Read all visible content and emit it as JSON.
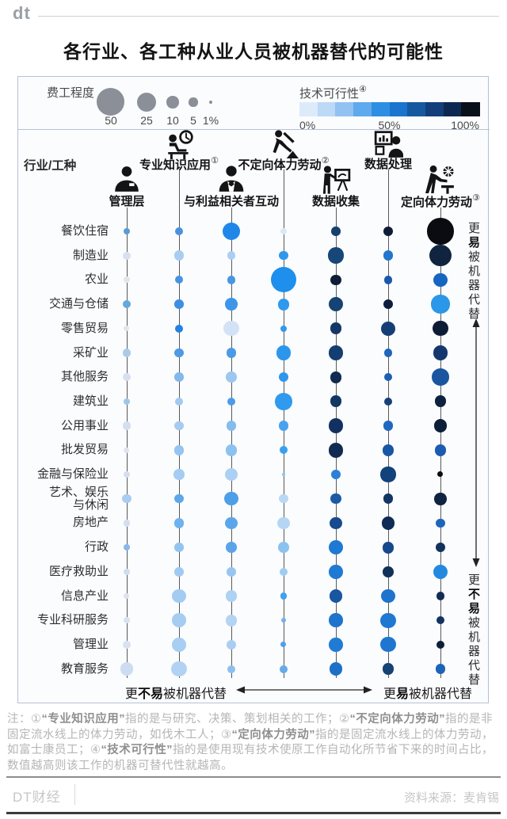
{
  "header": {
    "logo": "dt"
  },
  "chart_data": {
    "type": "bubble-matrix",
    "title": "各行业、各工种从业人员被机器替代的可能性",
    "corner_label": "行业/工种",
    "cell_format": [
      "size_pct_of_time",
      "feasibility_color"
    ],
    "size_legend": {
      "label": "费工程度",
      "items": [
        {
          "label": "50",
          "value": 50
        },
        {
          "label": "25",
          "value": 25
        },
        {
          "label": "10",
          "value": 10
        },
        {
          "label": "5",
          "value": 5
        },
        {
          "label": "1%",
          "value": 1
        }
      ]
    },
    "color_legend": {
      "label": "技术可行性",
      "sup": "④",
      "ticks": [
        "0%",
        "50%",
        "100%"
      ],
      "stops": [
        "#dcebfa",
        "#bcd9f6",
        "#92c2f1",
        "#5faaec",
        "#2e8fe2",
        "#1b74cd",
        "#17599f",
        "#123e7c",
        "#0d2850",
        "#0a0f1c"
      ]
    },
    "columns": [
      {
        "label": "管理层",
        "sup": "",
        "icon": "manager-icon"
      },
      {
        "label": "专业知识应用",
        "sup": "①",
        "icon": "knowledge-icon"
      },
      {
        "label": "与利益相关者互动",
        "sup": "",
        "icon": "stakeholder-icon"
      },
      {
        "label": "不定向体力劳动",
        "sup": "②",
        "icon": "shovel-worker-icon"
      },
      {
        "label": "数据收集",
        "sup": "",
        "icon": "data-collect-icon"
      },
      {
        "label": "数据处理",
        "sup": "",
        "icon": "data-process-icon"
      },
      {
        "label": "定向体力劳动",
        "sup": "③",
        "icon": "machine-worker-icon"
      }
    ],
    "rows": [
      {
        "label": "餐饮住宿",
        "cells": [
          [
            3,
            "#5b9bd5"
          ],
          [
            4.5,
            "#4a92dd"
          ],
          [
            20,
            "#1f87e8"
          ],
          [
            3,
            "#dde8f6"
          ],
          [
            5.5,
            "#17406e"
          ],
          [
            6.5,
            "#0e1c36"
          ],
          [
            45,
            "#0a0c12"
          ]
        ]
      },
      {
        "label": "制造业",
        "cells": [
          [
            4,
            "#d9e0f0"
          ],
          [
            6.5,
            "#a8cdf0"
          ],
          [
            4.5,
            "#abcff2"
          ],
          [
            5.5,
            "#2e97ec"
          ],
          [
            17,
            "#174679"
          ],
          [
            6.5,
            "#2176ce"
          ],
          [
            30,
            "#10243f"
          ]
        ]
      },
      {
        "label": "农业",
        "cells": [
          [
            2.5,
            "#e2e6ec"
          ],
          [
            4,
            "#4694e0"
          ],
          [
            4.5,
            "#4896e4"
          ],
          [
            42,
            "#1e8fec"
          ],
          [
            7.5,
            "#0e1d38"
          ],
          [
            4.5,
            "#1a58aa"
          ],
          [
            12.5,
            "#1566c0"
          ]
        ]
      },
      {
        "label": "交通与仓储",
        "cells": [
          [
            4,
            "#64a8dc"
          ],
          [
            5.5,
            "#3e8ee2"
          ],
          [
            10,
            "#3d95ea"
          ],
          [
            9,
            "#2e99ee"
          ],
          [
            14,
            "#164374"
          ],
          [
            6.5,
            "#0d1e3c"
          ],
          [
            22,
            "#2b97e8"
          ]
        ]
      },
      {
        "label": "零售贸易",
        "cells": [
          [
            2,
            "#e2e6ec"
          ],
          [
            4,
            "#2382e2"
          ],
          [
            15,
            "#d4e2f6"
          ],
          [
            3,
            "#2e99ee"
          ],
          [
            9,
            "#143767"
          ],
          [
            14,
            "#153f74"
          ],
          [
            15,
            "#0d1c36"
          ]
        ]
      },
      {
        "label": "采矿业",
        "cells": [
          [
            4.5,
            "#aacbe8"
          ],
          [
            5.5,
            "#5099e4"
          ],
          [
            6.5,
            "#4a9ae6"
          ],
          [
            14,
            "#2b96ec"
          ],
          [
            14,
            "#143e70"
          ],
          [
            4.5,
            "#1e66bc"
          ],
          [
            14,
            "#14386e"
          ]
        ]
      },
      {
        "label": "其他服务",
        "cells": [
          [
            4,
            "#d8dff0"
          ],
          [
            5.5,
            "#82b8ec"
          ],
          [
            7.5,
            "#9cc8f0"
          ],
          [
            6.5,
            "#2d97ec"
          ],
          [
            9,
            "#112a52"
          ],
          [
            4.5,
            "#1c5fb2"
          ],
          [
            19,
            "#1a55a0"
          ]
        ]
      },
      {
        "label": "建筑业",
        "cells": [
          [
            3,
            "#a0c6e8"
          ],
          [
            4.5,
            "#a2c9f0"
          ],
          [
            4.5,
            "#4c9ce8"
          ],
          [
            19,
            "#2f9aee"
          ],
          [
            9,
            "#133764"
          ],
          [
            4.5,
            "#164176"
          ],
          [
            9,
            "#0e2240"
          ]
        ]
      },
      {
        "label": "公用事业",
        "cells": [
          [
            4.5,
            "#d4def0"
          ],
          [
            5.5,
            "#a4cbf0"
          ],
          [
            6.5,
            "#84bcee"
          ],
          [
            6.5,
            "#49a2f0"
          ],
          [
            14,
            "#123161"
          ],
          [
            6.5,
            "#1e68c0"
          ],
          [
            11,
            "#0d1e3a"
          ]
        ]
      },
      {
        "label": "批发贸易",
        "cells": [
          [
            2,
            "#dfe4ee"
          ],
          [
            6.5,
            "#94c4f0"
          ],
          [
            9,
            "#8cc2f0"
          ],
          [
            4,
            "#37a0f0"
          ],
          [
            14,
            "#112a52"
          ],
          [
            9,
            "#1957a6"
          ],
          [
            9,
            "#1b5cb0"
          ]
        ]
      },
      {
        "label": "金融与保险业",
        "cells": [
          [
            3,
            "#d4def0"
          ],
          [
            7.5,
            "#a5ccf2"
          ],
          [
            11,
            "#abd0f4"
          ],
          [
            0.5,
            "#8cc2f0"
          ],
          [
            6.5,
            "#2b80d8"
          ],
          [
            15,
            "#12427c"
          ],
          [
            2,
            "#0a0a0f"
          ]
        ]
      },
      {
        "label": "艺术、娱乐\n与休闲",
        "cells": [
          [
            5.5,
            "#a9cdf0"
          ],
          [
            5.5,
            "#5da8ec"
          ],
          [
            12.5,
            "#4d9fe8"
          ],
          [
            5.5,
            "#b8d8f4"
          ],
          [
            7.5,
            "#1c59a6"
          ],
          [
            6.5,
            "#133564"
          ],
          [
            10,
            "#0f2342"
          ]
        ]
      },
      {
        "label": "房地产",
        "cells": [
          [
            3,
            "#d3dff0"
          ],
          [
            6.5,
            "#6fb2ee"
          ],
          [
            10,
            "#5ba6ea"
          ],
          [
            10,
            "#b5d5f4"
          ],
          [
            10,
            "#174a8e"
          ],
          [
            11,
            "#0e2c56"
          ],
          [
            5.5,
            "#1c66bc"
          ]
        ]
      },
      {
        "label": "行政",
        "cells": [
          [
            2.5,
            "#88b8e8"
          ],
          [
            5.5,
            "#93c4f0"
          ],
          [
            7.5,
            "#5ba4ea"
          ],
          [
            7.5,
            "#8cc2f0"
          ],
          [
            14,
            "#1e78d4"
          ],
          [
            9,
            "#16488c"
          ],
          [
            6.5,
            "#12315e"
          ]
        ]
      },
      {
        "label": "医疗救助业",
        "cells": [
          [
            3,
            "#d0ddf0"
          ],
          [
            5.5,
            "#a0caf2"
          ],
          [
            5.5,
            "#98c6f0"
          ],
          [
            4.5,
            "#a0ccf2"
          ],
          [
            12.5,
            "#1f7ad4"
          ],
          [
            7.5,
            "#123158"
          ],
          [
            14,
            "#2389e0"
          ]
        ]
      },
      {
        "label": "信息产业",
        "cells": [
          [
            2,
            "#dce2ee"
          ],
          [
            12.5,
            "#a2ccf2"
          ],
          [
            9,
            "#aed2f4"
          ],
          [
            3,
            "#42a0f0"
          ],
          [
            11,
            "#1a55a0"
          ],
          [
            12.5,
            "#1e74cc"
          ],
          [
            4.5,
            "#122c54"
          ]
        ]
      },
      {
        "label": "专业科研服务",
        "cells": [
          [
            3,
            "#d8e2f0"
          ],
          [
            12.5,
            "#a6ccf2"
          ],
          [
            9,
            "#b4d4f4"
          ],
          [
            1.5,
            "#74b0e8"
          ],
          [
            12.5,
            "#1e74cc"
          ],
          [
            15,
            "#1f78d2"
          ],
          [
            4,
            "#123260"
          ]
        ]
      },
      {
        "label": "管理业",
        "cells": [
          [
            4,
            "#d8e2f0"
          ],
          [
            12.5,
            "#a8cef2"
          ],
          [
            6.5,
            "#aacef2"
          ],
          [
            2,
            "#50a0ec"
          ],
          [
            12.5,
            "#1f7bd4"
          ],
          [
            15,
            "#1e76d0"
          ],
          [
            4,
            "#0d1e3a"
          ]
        ]
      },
      {
        "label": "教育服务",
        "cells": [
          [
            11,
            "#ccdcf2"
          ],
          [
            15,
            "#b2d2f4"
          ],
          [
            4,
            "#8cc0f0"
          ],
          [
            4,
            "#64aaec"
          ],
          [
            11,
            "#1c70c8"
          ],
          [
            9,
            "#164276"
          ],
          [
            6.5,
            "#1b64ba"
          ]
        ]
      }
    ]
  },
  "annotations": {
    "right_top": [
      {
        "t": "更",
        "b": 0
      },
      {
        "t": "易",
        "b": 1
      },
      {
        "t": "被机器代替",
        "b": 0
      }
    ],
    "right_bottom": [
      {
        "t": "更",
        "b": 0
      },
      {
        "t": "不易",
        "b": 1
      },
      {
        "t": "被机器代替",
        "b": 0
      }
    ],
    "bottom_left": [
      {
        "t": "更",
        "b": 0
      },
      {
        "t": "不易",
        "b": 1
      },
      {
        "t": "被机器代替",
        "b": 0
      }
    ],
    "bottom_right": [
      {
        "t": "更",
        "b": 0
      },
      {
        "t": "易",
        "b": 1
      },
      {
        "t": "被机器代替",
        "b": 0
      }
    ]
  },
  "footnote": {
    "segments": [
      {
        "t": "注：①",
        "b": 0
      },
      {
        "t": "“专业知识应用”",
        "b": 1
      },
      {
        "t": "指的是与研究、决策、策划相关的工作；②",
        "b": 0
      },
      {
        "t": "“不定向体力劳动”",
        "b": 1
      },
      {
        "t": "指的是非固定流水线上的体力劳动，如伐木工人；③",
        "b": 0
      },
      {
        "t": "“定向体力劳动”",
        "b": 1
      },
      {
        "t": "指的是固定流水线上的体力劳动，如富士康员工；④",
        "b": 0
      },
      {
        "t": "“技术可行性”",
        "b": 1
      },
      {
        "t": "指的是使用现有技术使原工作自动化所节省下来的时间占比，数值越高则该工作的机器可替代性就越高。",
        "b": 0
      }
    ]
  },
  "footer": {
    "brand": "DT财经",
    "source": "资料来源：麦肯锡"
  }
}
